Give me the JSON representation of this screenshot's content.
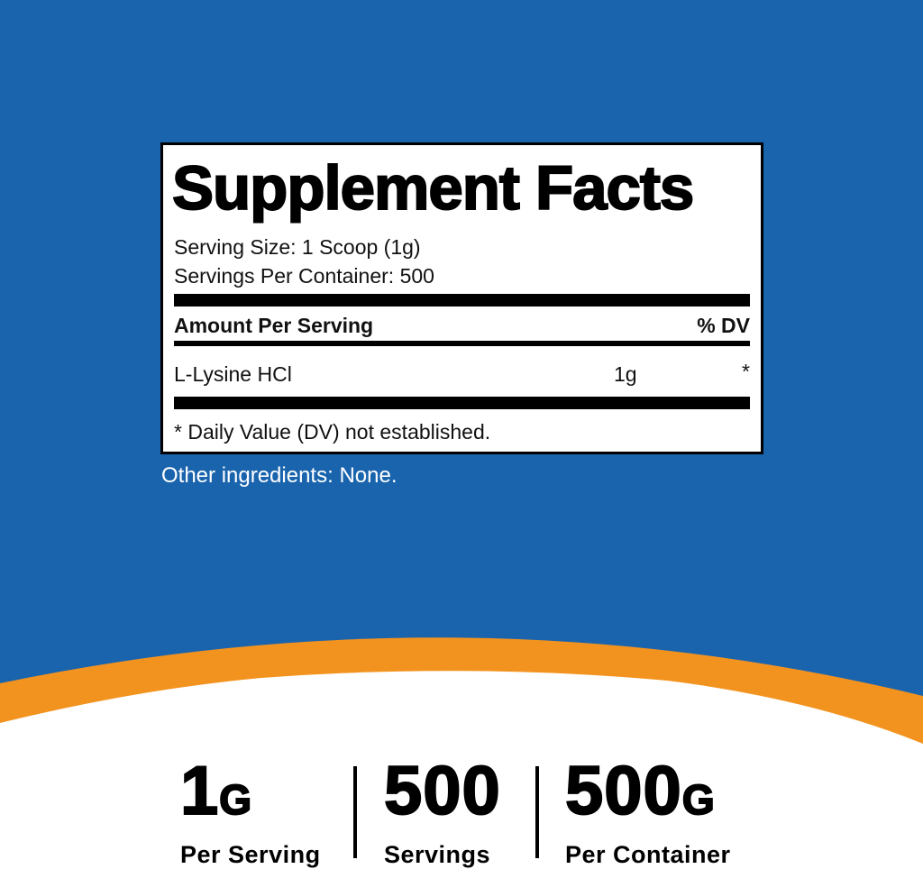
{
  "colors": {
    "background": "#1a64ae",
    "band": "#f3931f",
    "white": "#ffffff"
  },
  "label": {
    "title": "Supplement Facts",
    "serving_size": "Serving Size: 1 Scoop (1g)",
    "servings_per_container": "Servings Per Container: 500",
    "amount_header": "Amount Per Serving",
    "dv_header": "% DV",
    "ingredients": [
      {
        "name": "L-Lysine HCl",
        "amount": "1g",
        "dv": "*"
      }
    ],
    "footnote": "* Daily Value (DV) not established."
  },
  "other_ingredients": "Other ingredients: None.",
  "stats": [
    {
      "value": "1",
      "unit": "G",
      "label": "Per Serving"
    },
    {
      "value": "500",
      "unit": "",
      "label": "Servings"
    },
    {
      "value": "500",
      "unit": "G",
      "label": "Per Container"
    }
  ]
}
